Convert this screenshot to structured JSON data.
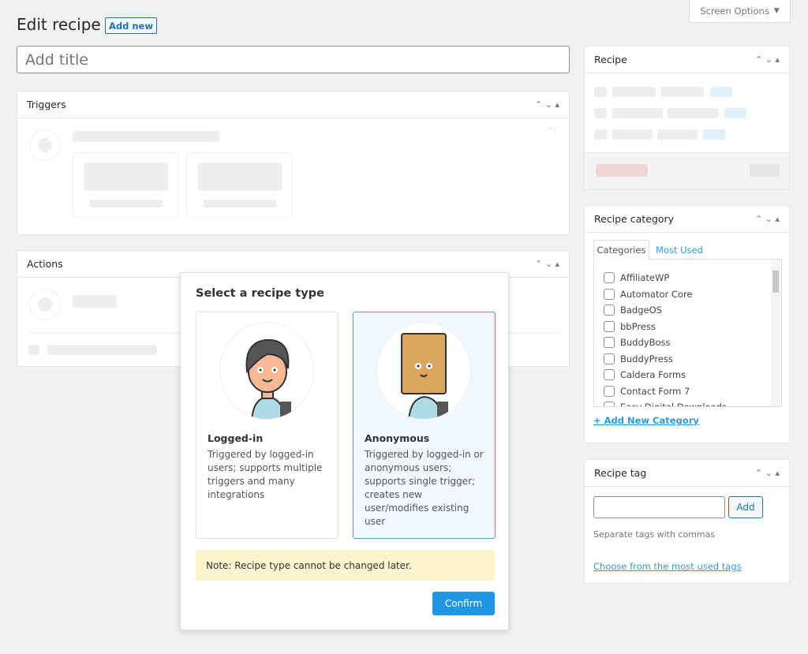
{
  "screen_options": "Screen Options",
  "header": {
    "title": "Edit recipe",
    "add_new": "Add new"
  },
  "title_input": {
    "placeholder": "Add title",
    "value": ""
  },
  "triggers": {
    "title": "Triggers"
  },
  "actions": {
    "title": "Actions"
  },
  "recipe_box": {
    "title": "Recipe"
  },
  "category_box": {
    "title": "Recipe category",
    "tabs": [
      "Categories",
      "Most Used"
    ],
    "items": [
      "AffiliateWP",
      "Automator Core",
      "BadgeOS",
      "bbPress",
      "BuddyBoss",
      "BuddyPress",
      "Caldera Forms",
      "Contact Form 7",
      "Easy Digital Downloads"
    ],
    "add_new": "+ Add New Category"
  },
  "tag_box": {
    "title": "Recipe tag",
    "input_value": "",
    "add": "Add",
    "hint": "Separate tags with commas",
    "choose": "Choose from the most used tags"
  },
  "modal": {
    "title": "Select a recipe type",
    "options": [
      {
        "title": "Logged-in",
        "desc": "Triggered by logged-in users; supports multiple triggers and many integrations",
        "selected": false
      },
      {
        "title": "Anonymous",
        "desc": "Triggered by logged-in or anonymous users; supports single trigger; creates new user/modifies existing user",
        "selected": true
      }
    ],
    "note": "Note: Recipe type cannot be changed later.",
    "confirm": "Confirm"
  },
  "colors": {
    "accent": "#1e8cbe",
    "confirm": "#2196e3",
    "note_bg": "#fdf3cf",
    "selected_bg": "#f0f7fd"
  }
}
